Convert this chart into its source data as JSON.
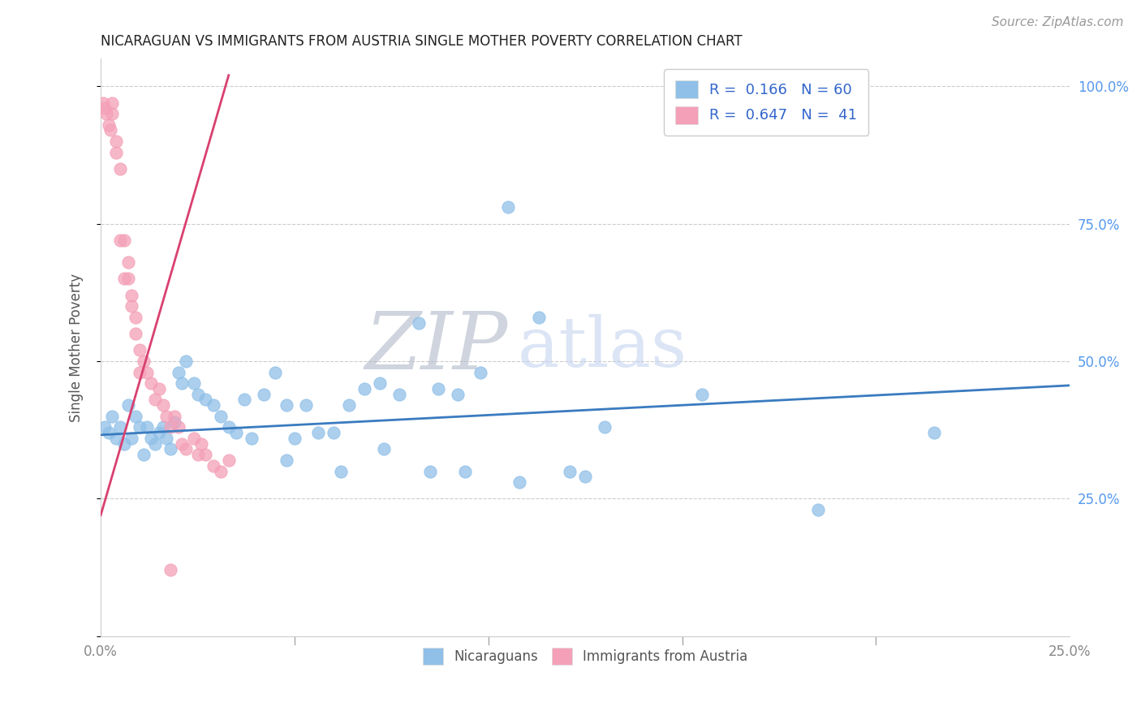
{
  "title": "NICARAGUAN VS IMMIGRANTS FROM AUSTRIA SINGLE MOTHER POVERTY CORRELATION CHART",
  "source": "Source: ZipAtlas.com",
  "ylabel": "Single Mother Poverty",
  "xlim": [
    0.0,
    0.25
  ],
  "ylim": [
    0.0,
    1.05
  ],
  "xticks": [
    0.0,
    0.05,
    0.1,
    0.15,
    0.2,
    0.25
  ],
  "xticklabels": [
    "0.0%",
    "",
    "",
    "",
    "",
    "25.0%"
  ],
  "yticks_right": [
    0.0,
    0.25,
    0.5,
    0.75,
    1.0
  ],
  "yticklabels_right": [
    "",
    "25.0%",
    "50.0%",
    "75.0%",
    "100.0%"
  ],
  "blue_color": "#90c0e8",
  "pink_color": "#f4a0b8",
  "blue_line_color": "#3a7bbf",
  "pink_line_color": "#d94070",
  "tick_color": "#888888",
  "right_tick_color": "#5599ee",
  "legend_text_color": "#3366cc",
  "R_blue": 0.166,
  "N_blue": 60,
  "R_pink": 0.647,
  "N_pink": 41,
  "watermark_ZIP": "ZIP",
  "watermark_atlas": "atlas",
  "grid_color": "#cccccc",
  "title_fontsize": 12,
  "source_fontsize": 11,
  "blue_points_x": [
    0.001,
    0.002,
    0.003,
    0.004,
    0.005,
    0.006,
    0.007,
    0.008,
    0.009,
    0.01,
    0.011,
    0.012,
    0.013,
    0.014,
    0.015,
    0.016,
    0.017,
    0.018,
    0.019,
    0.02,
    0.021,
    0.022,
    0.024,
    0.025,
    0.027,
    0.029,
    0.031,
    0.033,
    0.035,
    0.037,
    0.039,
    0.042,
    0.045,
    0.048,
    0.05,
    0.053,
    0.056,
    0.06,
    0.064,
    0.068,
    0.072,
    0.077,
    0.082,
    0.087,
    0.092,
    0.098,
    0.105,
    0.113,
    0.121,
    0.13,
    0.048,
    0.062,
    0.073,
    0.085,
    0.094,
    0.108,
    0.125,
    0.155,
    0.185,
    0.215
  ],
  "blue_points_y": [
    0.38,
    0.37,
    0.4,
    0.36,
    0.38,
    0.35,
    0.42,
    0.36,
    0.4,
    0.38,
    0.33,
    0.38,
    0.36,
    0.35,
    0.37,
    0.38,
    0.36,
    0.34,
    0.39,
    0.48,
    0.46,
    0.5,
    0.46,
    0.44,
    0.43,
    0.42,
    0.4,
    0.38,
    0.37,
    0.43,
    0.36,
    0.44,
    0.48,
    0.42,
    0.36,
    0.42,
    0.37,
    0.37,
    0.42,
    0.45,
    0.46,
    0.44,
    0.57,
    0.45,
    0.44,
    0.48,
    0.78,
    0.58,
    0.3,
    0.38,
    0.32,
    0.3,
    0.34,
    0.3,
    0.3,
    0.28,
    0.29,
    0.44,
    0.23,
    0.37
  ],
  "pink_points_x": [
    0.0005,
    0.001,
    0.0015,
    0.002,
    0.0025,
    0.003,
    0.003,
    0.004,
    0.004,
    0.005,
    0.005,
    0.006,
    0.006,
    0.007,
    0.007,
    0.008,
    0.008,
    0.009,
    0.009,
    0.01,
    0.01,
    0.011,
    0.012,
    0.013,
    0.014,
    0.015,
    0.016,
    0.017,
    0.018,
    0.019,
    0.02,
    0.021,
    0.022,
    0.024,
    0.025,
    0.026,
    0.027,
    0.029,
    0.031,
    0.033,
    0.018
  ],
  "pink_points_y": [
    0.97,
    0.96,
    0.95,
    0.93,
    0.92,
    0.97,
    0.95,
    0.9,
    0.88,
    0.85,
    0.72,
    0.65,
    0.72,
    0.68,
    0.65,
    0.62,
    0.6,
    0.55,
    0.58,
    0.52,
    0.48,
    0.5,
    0.48,
    0.46,
    0.43,
    0.45,
    0.42,
    0.4,
    0.38,
    0.4,
    0.38,
    0.35,
    0.34,
    0.36,
    0.33,
    0.35,
    0.33,
    0.31,
    0.3,
    0.32,
    0.12
  ],
  "blue_line_x0": 0.0,
  "blue_line_x1": 0.25,
  "blue_line_y0": 0.366,
  "blue_line_y1": 0.456,
  "pink_line_x0": 0.0,
  "pink_line_x1": 0.033,
  "pink_line_y0": 0.22,
  "pink_line_y1": 1.02
}
